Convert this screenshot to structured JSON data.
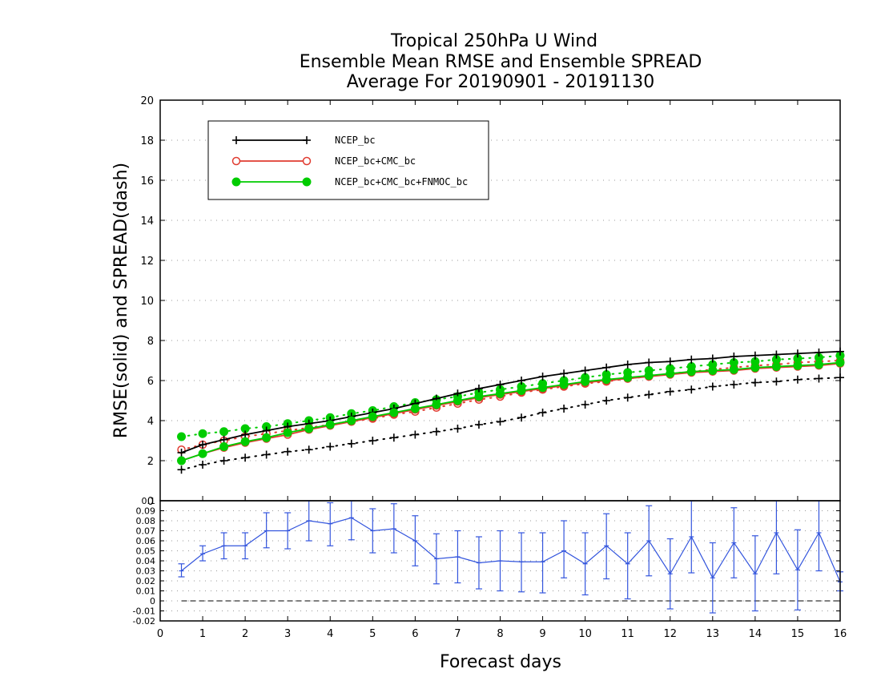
{
  "title": {
    "line1": "Tropical 250hPa U Wind",
    "line2": "Ensemble Mean RMSE and Ensemble SPREAD",
    "line3": "Average For 20190901 - 20191130"
  },
  "chart_data": [
    {
      "type": "line",
      "ylabel": "RMSE(solid) and SPREAD(dash)",
      "ylim": [
        0,
        20
      ],
      "yticks": [
        "0",
        "2",
        "4",
        "6",
        "8",
        "10",
        "12",
        "14",
        "16",
        "18",
        "20"
      ],
      "xlim": [
        0,
        16
      ],
      "grid": true,
      "legend_placement": "top-left",
      "x": [
        0.5,
        1,
        1.5,
        2,
        2.5,
        3,
        3.5,
        4,
        4.5,
        5,
        5.5,
        6,
        6.5,
        7,
        7.5,
        8,
        8.5,
        9,
        9.5,
        10,
        10.5,
        11,
        11.5,
        12,
        12.5,
        13,
        13.5,
        14,
        14.5,
        15,
        15.5,
        16
      ],
      "series": [
        {
          "name": "NCEP_bc",
          "kind": "rmse",
          "color": "#000000",
          "marker": "plus",
          "values": [
            2.4,
            2.8,
            3.05,
            3.3,
            3.5,
            3.7,
            3.85,
            4.0,
            4.2,
            4.4,
            4.6,
            4.85,
            5.1,
            5.35,
            5.6,
            5.8,
            6.0,
            6.2,
            6.35,
            6.5,
            6.65,
            6.8,
            6.9,
            6.95,
            7.05,
            7.1,
            7.2,
            7.25,
            7.3,
            7.35,
            7.4,
            7.45
          ]
        },
        {
          "name": "NCEP_bc+CMC_bc",
          "kind": "rmse",
          "color": "#e03c31",
          "marker": "open-circle",
          "values": [
            2.0,
            2.35,
            2.65,
            2.9,
            3.1,
            3.3,
            3.55,
            3.75,
            3.95,
            4.15,
            4.35,
            4.55,
            4.75,
            4.95,
            5.15,
            5.3,
            5.45,
            5.6,
            5.75,
            5.9,
            6.0,
            6.1,
            6.2,
            6.3,
            6.4,
            6.45,
            6.5,
            6.6,
            6.65,
            6.7,
            6.75,
            6.85
          ]
        },
        {
          "name": "NCEP_bc+CMC_bc+FNMOC_bc",
          "kind": "rmse",
          "color": "#00cc00",
          "marker": "filled-circle",
          "values": [
            2.0,
            2.35,
            2.7,
            2.95,
            3.15,
            3.4,
            3.6,
            3.8,
            4.0,
            4.2,
            4.4,
            4.6,
            4.8,
            5.0,
            5.2,
            5.35,
            5.5,
            5.65,
            5.8,
            5.95,
            6.05,
            6.15,
            6.25,
            6.35,
            6.45,
            6.5,
            6.55,
            6.65,
            6.7,
            6.75,
            6.8,
            6.9
          ]
        },
        {
          "name": "NCEP_bc",
          "kind": "spread",
          "color": "#000000",
          "marker": "plus",
          "values": [
            1.55,
            1.8,
            2.0,
            2.15,
            2.3,
            2.45,
            2.55,
            2.7,
            2.85,
            3.0,
            3.15,
            3.3,
            3.45,
            3.6,
            3.8,
            3.95,
            4.15,
            4.4,
            4.6,
            4.8,
            5.0,
            5.15,
            5.3,
            5.45,
            5.55,
            5.7,
            5.8,
            5.9,
            5.95,
            6.05,
            6.1,
            6.15
          ]
        },
        {
          "name": "NCEP_bc+CMC_bc",
          "kind": "spread",
          "color": "#e03c31",
          "marker": "open-circle",
          "values": [
            2.55,
            2.8,
            3.0,
            3.2,
            3.35,
            3.5,
            3.65,
            3.8,
            3.95,
            4.1,
            4.3,
            4.45,
            4.65,
            4.85,
            5.05,
            5.2,
            5.4,
            5.55,
            5.7,
            5.85,
            5.95,
            6.1,
            6.2,
            6.35,
            6.45,
            6.55,
            6.65,
            6.75,
            6.8,
            6.9,
            6.95,
            7.0
          ]
        },
        {
          "name": "NCEP_bc+CMC_bc+FNMOC_bc",
          "kind": "spread",
          "color": "#00cc00",
          "marker": "filled-circle",
          "values": [
            3.2,
            3.35,
            3.45,
            3.6,
            3.7,
            3.85,
            4.0,
            4.15,
            4.35,
            4.5,
            4.7,
            4.9,
            5.05,
            5.2,
            5.4,
            5.55,
            5.7,
            5.85,
            6.0,
            6.15,
            6.3,
            6.4,
            6.5,
            6.6,
            6.7,
            6.8,
            6.9,
            6.95,
            7.05,
            7.1,
            7.15,
            7.25
          ]
        }
      ]
    },
    {
      "type": "line",
      "xlabel": "Forecast days",
      "xlim": [
        0,
        16
      ],
      "xticks": [
        "0",
        "1",
        "2",
        "3",
        "4",
        "5",
        "6",
        "7",
        "8",
        "9",
        "10",
        "11",
        "12",
        "13",
        "14",
        "15",
        "16"
      ],
      "ylim": [
        -0.02,
        0.1
      ],
      "yticks": [
        "-0.02",
        "-0.01",
        "0",
        "0.01",
        "0.02",
        "0.03",
        "0.04",
        "0.05",
        "0.06",
        "0.07",
        "0.08",
        "0.09",
        "0.1"
      ],
      "grid": true,
      "x": [
        0.5,
        1,
        1.5,
        2,
        2.5,
        3,
        3.5,
        4,
        4.5,
        5,
        5.5,
        6,
        6.5,
        7,
        7.5,
        8,
        8.5,
        9,
        9.5,
        10,
        10.5,
        11,
        11.5,
        12,
        12.5,
        13,
        13.5,
        14,
        14.5,
        15,
        15.5,
        16
      ],
      "series": [
        {
          "kind": "difference",
          "color": "#3355dd",
          "values": [
            0.03,
            0.047,
            0.055,
            0.055,
            0.07,
            0.07,
            0.08,
            0.077,
            0.083,
            0.07,
            0.072,
            0.06,
            0.042,
            0.044,
            0.038,
            0.04,
            0.039,
            0.039,
            0.05,
            0.037,
            0.055,
            0.037,
            0.06,
            0.027,
            0.064,
            0.023,
            0.058,
            0.027,
            0.068,
            0.031,
            0.068,
            0.019
          ],
          "err_low": [
            0.024,
            0.04,
            0.042,
            0.042,
            0.053,
            0.052,
            0.06,
            0.055,
            0.061,
            0.048,
            0.048,
            0.035,
            0.017,
            0.018,
            0.012,
            0.01,
            0.009,
            0.008,
            0.023,
            0.006,
            0.022,
            0.002,
            0.025,
            -0.008,
            0.028,
            -0.012,
            0.023,
            -0.01,
            0.027,
            -0.009,
            0.03,
            0.01
          ],
          "err_high": [
            0.037,
            0.055,
            0.068,
            0.068,
            0.088,
            0.088,
            0.1,
            0.098,
            0.105,
            0.092,
            0.097,
            0.085,
            0.067,
            0.07,
            0.064,
            0.07,
            0.068,
            0.068,
            0.08,
            0.068,
            0.087,
            0.068,
            0.095,
            0.062,
            0.1,
            0.058,
            0.093,
            0.065,
            0.11,
            0.071,
            0.105,
            0.029
          ]
        }
      ],
      "reference_line": 0
    }
  ]
}
